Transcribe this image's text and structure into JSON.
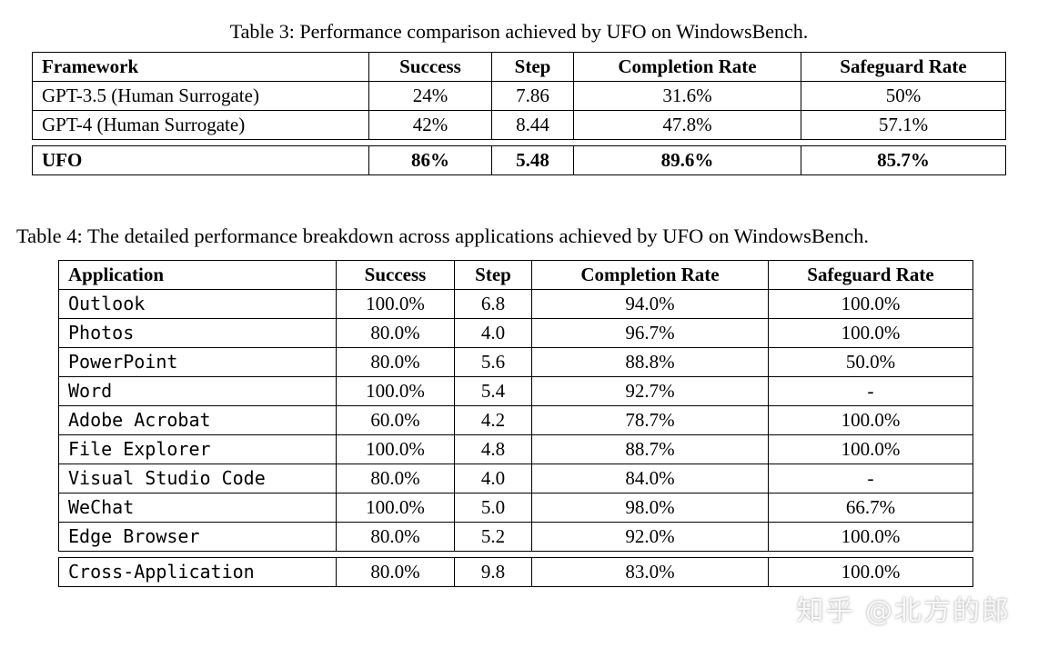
{
  "table3": {
    "caption": "Table 3: Performance comparison achieved by UFO on WindowsBench.",
    "headers": [
      "Framework",
      "Success",
      "Step",
      "Completion Rate",
      "Safeguard Rate"
    ],
    "rows": [
      {
        "cells": [
          "GPT-3.5 (Human Surrogate)",
          "24%",
          "7.86",
          "31.6%",
          "50%"
        ],
        "bold": false,
        "gap_above": false
      },
      {
        "cells": [
          "GPT-4 (Human Surrogate)",
          "42%",
          "8.44",
          "47.8%",
          "57.1%"
        ],
        "bold": false,
        "gap_above": false
      },
      {
        "cells": [
          "UFO",
          "86%",
          "5.48",
          "89.6%",
          "85.7%"
        ],
        "bold": true,
        "gap_above": true
      }
    ]
  },
  "table4": {
    "caption": "Table 4: The detailed performance breakdown across applications achieved by UFO on WindowsBench.",
    "headers": [
      "Application",
      "Success",
      "Step",
      "Completion Rate",
      "Safeguard Rate"
    ],
    "mono_first_column": true,
    "rows": [
      {
        "cells": [
          "Outlook",
          "100.0%",
          "6.8",
          "94.0%",
          "100.0%"
        ],
        "bold": false,
        "gap_above": false
      },
      {
        "cells": [
          "Photos",
          "80.0%",
          "4.0",
          "96.7%",
          "100.0%"
        ],
        "bold": false,
        "gap_above": false
      },
      {
        "cells": [
          "PowerPoint",
          "80.0%",
          "5.6",
          "88.8%",
          "50.0%"
        ],
        "bold": false,
        "gap_above": false
      },
      {
        "cells": [
          "Word",
          "100.0%",
          "5.4",
          "92.7%",
          "-"
        ],
        "bold": false,
        "gap_above": false
      },
      {
        "cells": [
          "Adobe Acrobat",
          "60.0%",
          "4.2",
          "78.7%",
          "100.0%"
        ],
        "bold": false,
        "gap_above": false
      },
      {
        "cells": [
          "File Explorer",
          "100.0%",
          "4.8",
          "88.7%",
          "100.0%"
        ],
        "bold": false,
        "gap_above": false
      },
      {
        "cells": [
          "Visual Studio Code",
          "80.0%",
          "4.0",
          "84.0%",
          "-"
        ],
        "bold": false,
        "gap_above": false
      },
      {
        "cells": [
          "WeChat",
          "100.0%",
          "5.0",
          "98.0%",
          "66.7%"
        ],
        "bold": false,
        "gap_above": false
      },
      {
        "cells": [
          "Edge Browser",
          "80.0%",
          "5.2",
          "92.0%",
          "100.0%"
        ],
        "bold": false,
        "gap_above": false
      },
      {
        "cells": [
          "Cross-Application",
          "80.0%",
          "9.8",
          "83.0%",
          "100.0%"
        ],
        "bold": false,
        "gap_above": true
      }
    ]
  },
  "watermark": {
    "text": "知乎 @北方的郎"
  }
}
